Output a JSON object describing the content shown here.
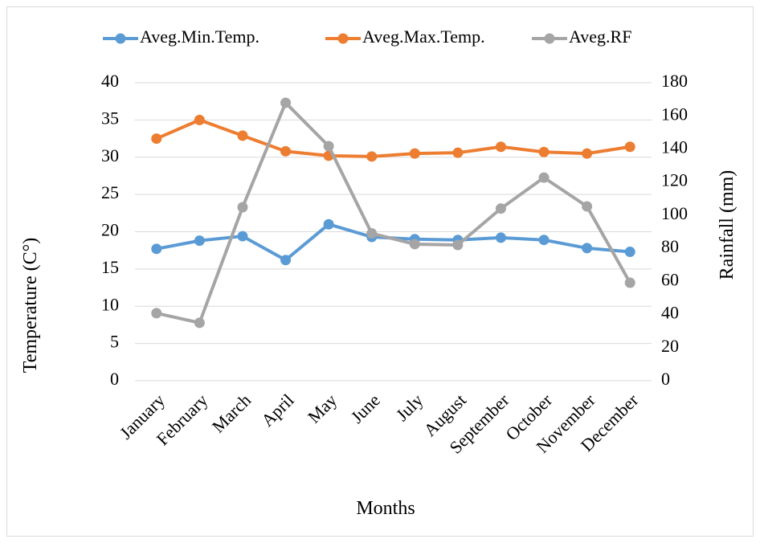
{
  "chart_data": {
    "type": "line",
    "x_label": "Months",
    "y_label": "Temperature (C°)",
    "y2_label": "Rainfall (mm)",
    "categories": [
      "January",
      "February",
      "March",
      "April",
      "May",
      "June",
      "July",
      "August",
      "September",
      "October",
      "November",
      "December"
    ],
    "series": [
      {
        "name": "Aveg.Min.Temp.",
        "color": "#5b9bd5",
        "values": [
          17.7,
          18.8,
          19.4,
          16.2,
          21.0,
          19.3,
          19.0,
          18.9,
          19.2,
          18.9,
          17.8,
          17.3
        ]
      },
      {
        "name": "Aveg.Max.Temp.",
        "color": "#ed7d31",
        "values": [
          32.5,
          35.0,
          32.9,
          30.8,
          30.2,
          30.1,
          30.5,
          30.6,
          31.4,
          30.7,
          30.5,
          31.4
        ]
      },
      {
        "name": "Aveg.RF",
        "color": "#a5a5a5",
        "axis": "y2",
        "values": [
          40.8,
          35,
          104.8,
          167.9,
          141.7,
          89,
          82.5,
          82,
          104,
          122.7,
          105.3,
          59.2
        ]
      }
    ],
    "ylim": [
      0,
      40
    ],
    "yticks": [
      0,
      5,
      10,
      15,
      20,
      25,
      30,
      35,
      40
    ],
    "y2lim": [
      0,
      180
    ],
    "y2ticks": [
      0,
      20,
      40,
      60,
      80,
      100,
      120,
      140,
      160,
      180
    ],
    "grid": true,
    "legend": "top"
  }
}
